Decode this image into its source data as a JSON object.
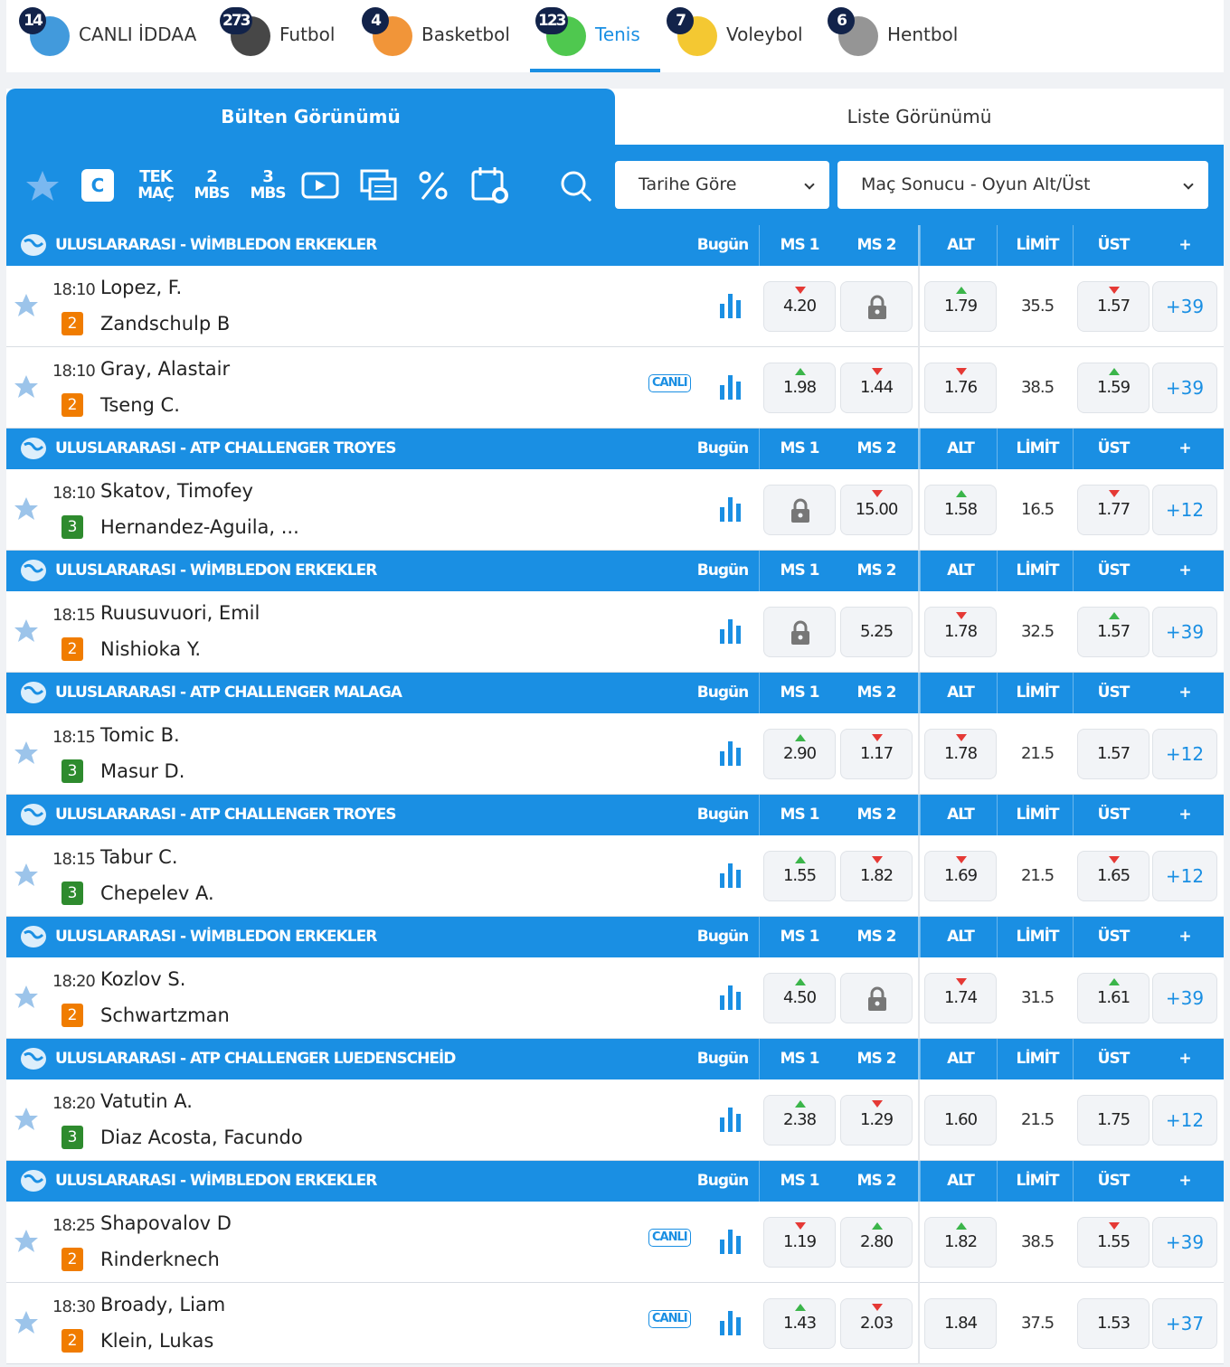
{
  "sports_tabs": [
    {
      "count": 14,
      "label": "CANLI İDDAA",
      "color": "#2d8fd8"
    },
    {
      "count": 273,
      "label": "Futbol",
      "color": "#333333"
    },
    {
      "count": 4,
      "label": "Basketbol",
      "color": "#f08a24"
    },
    {
      "count": 123,
      "label": "Tenis",
      "color": "#3cc23c",
      "active": true
    },
    {
      "count": 7,
      "label": "Voleybol",
      "color": "#f3c21c"
    },
    {
      "count": 6,
      "label": "Hentbol",
      "color": "#8a8a8a"
    }
  ],
  "view_tabs": [
    "Bülten Görünümü",
    "Liste Görünümü"
  ],
  "toolbar_labels": [
    [
      "C"
    ],
    [
      "TEK",
      "MAÇ"
    ],
    [
      "2",
      "MBS"
    ],
    [
      "3",
      "MBS"
    ]
  ],
  "filters": [
    "Tarihe Göre",
    "Maç Sonucu - Oyun Alt/Üst"
  ],
  "columns": [
    "Bugün",
    "MS 1",
    "MS 2",
    "ALT",
    "LİMİT",
    "ÜST",
    "+"
  ],
  "groups": [
    {
      "league": "ULUSLARARASI - WİMBLEDON ERKEKLER",
      "matches": [
        {
          "time": "18:10",
          "home": "Lopez, F.",
          "away": "Zandschulp B",
          "sets": "2",
          "odds": [
            {
              "v": "4.20",
              "t": "down"
            },
            {
              "lock": true
            },
            {
              "v": "1.79",
              "t": "up"
            },
            {
              "v": "35.5"
            },
            {
              "v": "1.57",
              "t": "down"
            }
          ],
          "more": "+39"
        },
        {
          "time": "18:10",
          "home": "Gray, Alastair",
          "away": "Tseng C.",
          "sets": "2",
          "live": "CANLI",
          "odds": [
            {
              "v": "1.98",
              "t": "up"
            },
            {
              "v": "1.44",
              "t": "down"
            },
            {
              "v": "1.76",
              "t": "down"
            },
            {
              "v": "38.5"
            },
            {
              "v": "1.59",
              "t": "up"
            }
          ],
          "more": "+39"
        }
      ]
    },
    {
      "league": "ULUSLARARASI - ATP CHALLENGER TROYES",
      "matches": [
        {
          "time": "18:10",
          "home": "Skatov, Timofey",
          "away": "Hernandez-Aguila, ...",
          "sets": "3",
          "odds": [
            {
              "lock": true
            },
            {
              "v": "15.00",
              "t": "down"
            },
            {
              "v": "1.58",
              "t": "up"
            },
            {
              "v": "16.5"
            },
            {
              "v": "1.77",
              "t": "down"
            }
          ],
          "more": "+12"
        }
      ]
    },
    {
      "league": "ULUSLARARASI - WİMBLEDON ERKEKLER",
      "matches": [
        {
          "time": "18:15",
          "home": "Ruusuvuori, Emil",
          "away": "Nishioka Y.",
          "sets": "2",
          "odds": [
            {
              "lock": true
            },
            {
              "v": "5.25"
            },
            {
              "v": "1.78",
              "t": "down"
            },
            {
              "v": "32.5"
            },
            {
              "v": "1.57",
              "t": "up"
            }
          ],
          "more": "+39"
        }
      ]
    },
    {
      "league": "ULUSLARARASI - ATP CHALLENGER MALAGA",
      "matches": [
        {
          "time": "18:15",
          "home": "Tomic B.",
          "away": "Masur D.",
          "sets": "3",
          "odds": [
            {
              "v": "2.90",
              "t": "up"
            },
            {
              "v": "1.17",
              "t": "down"
            },
            {
              "v": "1.78",
              "t": "down"
            },
            {
              "v": "21.5"
            },
            {
              "v": "1.57"
            }
          ],
          "more": "+12"
        }
      ]
    },
    {
      "league": "ULUSLARARASI - ATP CHALLENGER TROYES",
      "matches": [
        {
          "time": "18:15",
          "home": "Tabur C.",
          "away": "Chepelev A.",
          "sets": "3",
          "odds": [
            {
              "v": "1.55",
              "t": "up"
            },
            {
              "v": "1.82",
              "t": "down"
            },
            {
              "v": "1.69",
              "t": "down"
            },
            {
              "v": "21.5"
            },
            {
              "v": "1.65",
              "t": "down"
            }
          ],
          "more": "+12"
        }
      ]
    },
    {
      "league": "ULUSLARARASI - WİMBLEDON ERKEKLER",
      "matches": [
        {
          "time": "18:20",
          "home": "Kozlov S.",
          "away": "Schwartzman",
          "sets": "2",
          "odds": [
            {
              "v": "4.50",
              "t": "up"
            },
            {
              "lock": true
            },
            {
              "v": "1.74",
              "t": "down"
            },
            {
              "v": "31.5"
            },
            {
              "v": "1.61",
              "t": "up"
            }
          ],
          "more": "+39"
        }
      ]
    },
    {
      "league": "ULUSLARARASI - ATP CHALLENGER LUEDENSCHEİD",
      "matches": [
        {
          "time": "18:20",
          "home": "Vatutin A.",
          "away": "Diaz Acosta, Facundo",
          "sets": "3",
          "odds": [
            {
              "v": "2.38",
              "t": "up"
            },
            {
              "v": "1.29",
              "t": "down"
            },
            {
              "v": "1.60"
            },
            {
              "v": "21.5"
            },
            {
              "v": "1.75"
            }
          ],
          "more": "+12"
        }
      ]
    },
    {
      "league": "ULUSLARARASI - WİMBLEDON ERKEKLER",
      "matches": [
        {
          "time": "18:25",
          "home": "Shapovalov D",
          "away": "Rinderknech",
          "sets": "2",
          "live": "CANLI",
          "odds": [
            {
              "v": "1.19",
              "t": "down"
            },
            {
              "v": "2.80",
              "t": "up"
            },
            {
              "v": "1.82",
              "t": "up"
            },
            {
              "v": "38.5"
            },
            {
              "v": "1.55",
              "t": "down"
            }
          ],
          "more": "+39"
        },
        {
          "time": "18:30",
          "home": "Broady, Liam",
          "away": "Klein, Lukas",
          "sets": "2",
          "live": "CANLI",
          "odds": [
            {
              "v": "1.43",
              "t": "up"
            },
            {
              "v": "2.03",
              "t": "down"
            },
            {
              "v": "1.84"
            },
            {
              "v": "37.5"
            },
            {
              "v": "1.53"
            }
          ],
          "more": "+37"
        }
      ]
    }
  ]
}
